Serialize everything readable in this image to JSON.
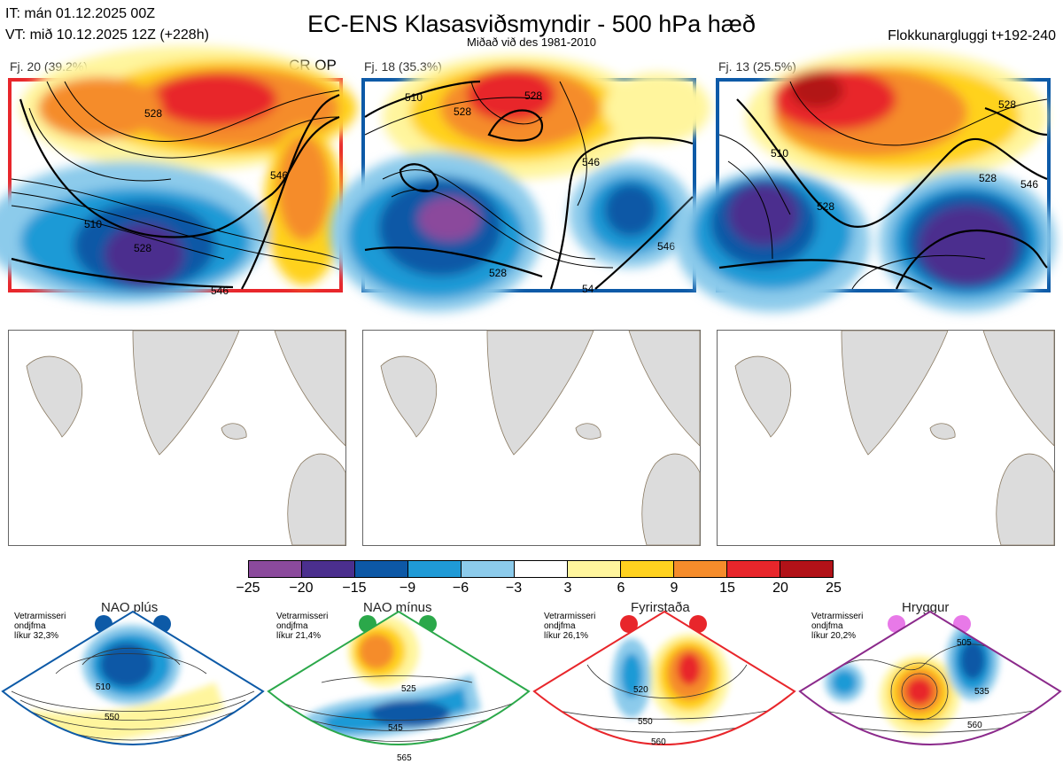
{
  "header": {
    "issue_time": "IT: mán 01.12.2025 00Z",
    "valid_time": "VT: mið 10.12.2025 12Z  (+228h)",
    "title": "EC-ENS Klasasviðsmyndir - 500 hPa hæð",
    "subtitle": "Miðað við des 1981-2010",
    "window": "Flokkunargluggi t+192-240"
  },
  "clusters": [
    {
      "label": "Fj. 20 (39.2%)",
      "frame_color": "#e8262b",
      "tag": "CR OP"
    },
    {
      "label": "Fj. 18 (35.3%)",
      "frame_color": "#0d5aa7",
      "tag": ""
    },
    {
      "label": "Fj. 13 (25.5%)",
      "frame_color": "#0d5aa7",
      "tag": ""
    }
  ],
  "contour_labels": {
    "c1": [
      "528",
      "546",
      "510",
      "528",
      "546"
    ],
    "c2": [
      "510",
      "528",
      "528",
      "546",
      "528",
      "546",
      "54"
    ],
    "c3": [
      "510",
      "528",
      "528",
      "546",
      "528"
    ]
  },
  "colorbar": {
    "colors": [
      "#8b4a9c",
      "#4b2f8e",
      "#0d58a6",
      "#1f9ad6",
      "#8ccbeb",
      "#ffffff",
      "#fff59d",
      "#ffd21f",
      "#f58c2b",
      "#e8262b",
      "#b21218"
    ],
    "ticks": [
      "−25",
      "−20",
      "−15",
      "−9",
      "−6",
      "−3",
      "3",
      "6",
      "9",
      "15",
      "20",
      "25"
    ]
  },
  "regimes": [
    {
      "name": "NAO plús",
      "info": [
        "Vetrarmisseri",
        "ondjfma",
        "líkur 32,3%"
      ],
      "color": "#0d5aa7",
      "contours": [
        "510",
        "550"
      ]
    },
    {
      "name": "NAO mínus",
      "info": [
        "Vetrarmisseri",
        "ondjfma",
        "líkur 21,4%"
      ],
      "color": "#2ba84a",
      "contours": [
        "525",
        "545",
        "565"
      ]
    },
    {
      "name": "Fyrirstaða",
      "info": [
        "Vetrarmisseri",
        "ondjfma",
        "líkur 26,1%"
      ],
      "color": "#e8262b",
      "contours": [
        "520",
        "550",
        "560"
      ]
    },
    {
      "name": "Hryggur",
      "info": [
        "Vetrarmisseri",
        "ondjfma",
        "líkur 20,2%"
      ],
      "color": "#8b2a8b",
      "contours": [
        "505",
        "535",
        "560"
      ]
    }
  ]
}
